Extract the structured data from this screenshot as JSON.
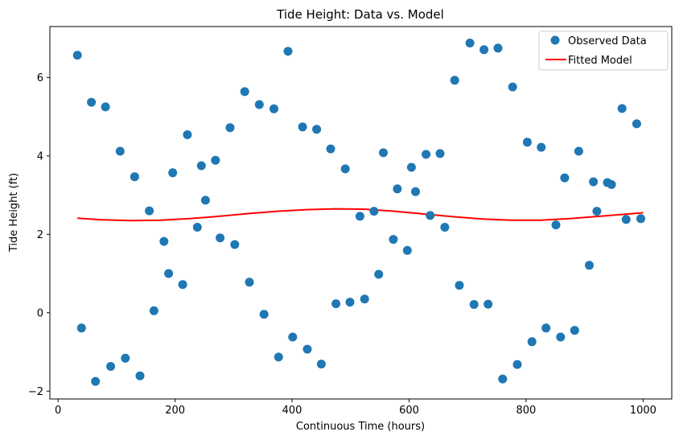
{
  "chart_data": {
    "type": "scatter",
    "title": "Tide Height: Data vs. Model",
    "xlabel": "Continuous Time (hours)",
    "ylabel": "Tide Height (ft)",
    "xlim": [
      -14,
      1049
    ],
    "ylim": [
      -2.2,
      7.3
    ],
    "xticks": [
      0,
      200,
      400,
      600,
      800,
      1000
    ],
    "yticks": [
      -2,
      0,
      2,
      4,
      6
    ],
    "grid": false,
    "legend_position": "top-right",
    "colors": {
      "observed": "#1f77b4",
      "model": "#ff0000"
    },
    "series": [
      {
        "name": "Observed Data",
        "kind": "scatter",
        "x": [
          33,
          40,
          57,
          64,
          81,
          90,
          106,
          115,
          131,
          140,
          156,
          164,
          181,
          189,
          196,
          213,
          221,
          238,
          245,
          252,
          269,
          277,
          294,
          302,
          319,
          327,
          344,
          352,
          369,
          377,
          393,
          401,
          418,
          426,
          442,
          450,
          466,
          475,
          491,
          499,
          516,
          524,
          540,
          548,
          556,
          573,
          580,
          597,
          604,
          611,
          629,
          636,
          653,
          661,
          678,
          686,
          704,
          711,
          728,
          735,
          752,
          760,
          777,
          785,
          802,
          810,
          826,
          834,
          851,
          859,
          866,
          883,
          890,
          908,
          915,
          921,
          939,
          946,
          964,
          971,
          989,
          996
        ],
        "y": [
          6.57,
          -0.39,
          5.37,
          -1.75,
          5.25,
          -1.37,
          4.12,
          -1.16,
          3.47,
          -1.61,
          2.6,
          0.05,
          1.82,
          1.0,
          3.57,
          0.72,
          4.54,
          2.18,
          3.75,
          2.87,
          3.89,
          1.91,
          4.72,
          1.74,
          5.64,
          0.78,
          5.31,
          -0.04,
          5.2,
          -1.13,
          6.67,
          -0.62,
          4.74,
          -0.93,
          4.68,
          -1.31,
          4.18,
          0.23,
          3.67,
          0.27,
          2.46,
          0.35,
          2.59,
          0.98,
          4.08,
          1.87,
          3.16,
          1.59,
          3.71,
          3.09,
          4.04,
          2.48,
          4.06,
          2.18,
          5.93,
          0.7,
          6.88,
          0.21,
          6.71,
          0.22,
          6.75,
          -1.69,
          5.76,
          -1.32,
          4.35,
          -0.74,
          4.22,
          -0.39,
          2.24,
          -0.62,
          3.44,
          -0.45,
          4.12,
          1.21,
          3.34,
          2.59,
          3.32,
          3.27,
          5.21,
          2.38,
          4.82,
          2.4
        ]
      },
      {
        "name": "Fitted Model",
        "kind": "line",
        "x": [
          33,
          75,
          125,
          175,
          225,
          275,
          325,
          375,
          425,
          475,
          525,
          575,
          625,
          675,
          725,
          775,
          825,
          875,
          925,
          975,
          1000
        ],
        "y": [
          2.41,
          2.37,
          2.35,
          2.36,
          2.4,
          2.46,
          2.53,
          2.59,
          2.63,
          2.65,
          2.64,
          2.59,
          2.52,
          2.45,
          2.39,
          2.36,
          2.36,
          2.4,
          2.46,
          2.52,
          2.55
        ]
      }
    ]
  }
}
